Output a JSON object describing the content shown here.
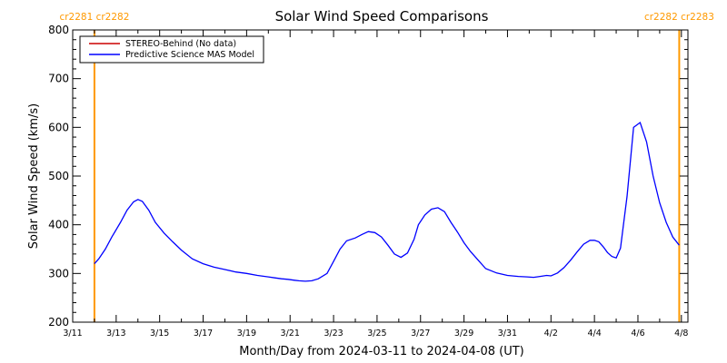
{
  "colors": {
    "model_line": "#0000ff",
    "stereo_line": "#cc0000",
    "cr_marker": "#ff9900",
    "axis": "#000000"
  },
  "chart_data": {
    "type": "line",
    "title": "Solar Wind Speed Comparisons",
    "xlabel": "Month/Day from 2024-03-11 to 2024-04-08 (UT)",
    "ylabel": "Solar Wind Speed (km/s)",
    "xlim_days": [
      0,
      28.3
    ],
    "ylim": [
      200,
      800
    ],
    "yticks": [
      200,
      300,
      400,
      500,
      600,
      700,
      800
    ],
    "xticks": [
      {
        "day": 0,
        "label": "3/11"
      },
      {
        "day": 2,
        "label": "3/13"
      },
      {
        "day": 4,
        "label": "3/15"
      },
      {
        "day": 6,
        "label": "3/17"
      },
      {
        "day": 8,
        "label": "3/19"
      },
      {
        "day": 10,
        "label": "3/21"
      },
      {
        "day": 12,
        "label": "3/23"
      },
      {
        "day": 14,
        "label": "3/25"
      },
      {
        "day": 16,
        "label": "3/27"
      },
      {
        "day": 18,
        "label": "3/29"
      },
      {
        "day": 20,
        "label": "3/31"
      },
      {
        "day": 22,
        "label": "4/2"
      },
      {
        "day": 24,
        "label": "4/4"
      },
      {
        "day": 26,
        "label": "4/6"
      },
      {
        "day": 28,
        "label": "4/8"
      }
    ],
    "legend": {
      "placement": "top-left",
      "entries": [
        {
          "label": "STEREO-Behind (No data)",
          "color": "#cc0000"
        },
        {
          "label": "Predictive Science MAS Model",
          "color": "#0000ff"
        }
      ]
    },
    "carrington_markers": [
      {
        "day": 1.0,
        "label": "cr2281 cr2282"
      },
      {
        "day": 27.9,
        "label": "cr2282 cr2283"
      }
    ],
    "series": [
      {
        "name": "Predictive Science MAS Model",
        "x": [
          1.0,
          1.2,
          1.5,
          1.8,
          2.2,
          2.5,
          2.8,
          3.0,
          3.2,
          3.5,
          3.8,
          4.2,
          4.6,
          5.0,
          5.5,
          6.0,
          6.5,
          7.0,
          7.5,
          8.0,
          8.5,
          9.0,
          9.3,
          9.6,
          9.9,
          10.2,
          10.4,
          10.7,
          11.0,
          11.3,
          11.7,
          12.0,
          12.3,
          12.6,
          13.0,
          13.3,
          13.6,
          13.9,
          14.2,
          14.5,
          14.8,
          15.1,
          15.4,
          15.7,
          15.9,
          16.2,
          16.5,
          16.8,
          17.1,
          17.4,
          17.7,
          18.0,
          18.3,
          18.7,
          19.0,
          19.5,
          20.0,
          20.5,
          20.9,
          21.2,
          21.5,
          21.8,
          22.0,
          22.3,
          22.6,
          22.9,
          23.2,
          23.5,
          23.8,
          24.0,
          24.2,
          24.4,
          24.6,
          24.8,
          25.0,
          25.2,
          25.5,
          25.8,
          26.1,
          26.4,
          26.7,
          27.0,
          27.3,
          27.6,
          27.9
        ],
        "values": [
          320,
          330,
          350,
          375,
          405,
          430,
          447,
          452,
          448,
          430,
          405,
          383,
          365,
          348,
          330,
          320,
          313,
          308,
          303,
          300,
          296,
          293,
          291,
          289,
          288,
          286,
          285,
          284,
          285,
          289,
          300,
          325,
          350,
          367,
          373,
          380,
          386,
          384,
          375,
          358,
          340,
          333,
          342,
          370,
          400,
          420,
          432,
          435,
          427,
          405,
          385,
          363,
          345,
          325,
          310,
          301,
          296,
          294,
          293,
          292,
          294,
          296,
          295,
          301,
          312,
          327,
          344,
          360,
          368,
          368,
          365,
          355,
          343,
          335,
          332,
          352,
          458,
          600,
          610,
          570,
          500,
          445,
          405,
          375,
          358
        ]
      }
    ]
  }
}
